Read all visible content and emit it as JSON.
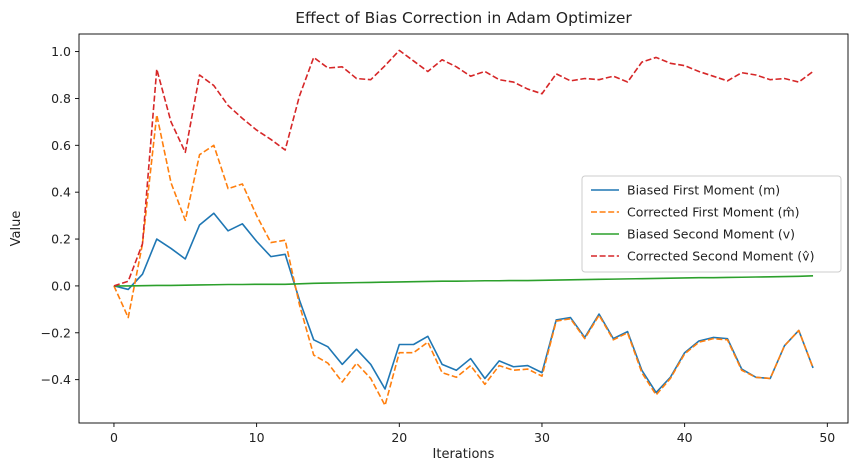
{
  "chart_data": {
    "type": "line",
    "title": "Effect of Bias Correction in Adam Optimizer",
    "xlabel": "Iterations",
    "ylabel": "Value",
    "xlim": [
      -2.45,
      51.45
    ],
    "ylim": [
      -0.585,
      1.075
    ],
    "x_ticks": [
      0,
      10,
      20,
      30,
      40,
      50
    ],
    "y_ticks": [
      -0.4,
      -0.2,
      0.0,
      0.2,
      0.4,
      0.6,
      0.8,
      1.0
    ],
    "x_tick_labels": [
      "0",
      "10",
      "20",
      "30",
      "40",
      "50"
    ],
    "y_tick_labels": [
      "−0.4",
      "−0.2",
      "0.0",
      "0.2",
      "0.4",
      "0.6",
      "0.8",
      "1.0"
    ],
    "grid": false,
    "legend_position": "center-right",
    "x": [
      0,
      1,
      2,
      3,
      4,
      5,
      6,
      7,
      8,
      9,
      10,
      11,
      12,
      13,
      14,
      15,
      16,
      17,
      18,
      19,
      20,
      21,
      22,
      23,
      24,
      25,
      26,
      27,
      28,
      29,
      30,
      31,
      32,
      33,
      34,
      35,
      36,
      37,
      38,
      39,
      40,
      41,
      42,
      43,
      44,
      45,
      46,
      47,
      48,
      49
    ],
    "series": [
      {
        "name": "Biased First Moment (m)",
        "color": "#1f77b4",
        "dash": "solid",
        "values": [
          0.0,
          -0.015,
          0.05,
          0.2,
          0.16,
          0.115,
          0.26,
          0.31,
          0.235,
          0.265,
          0.19,
          0.125,
          0.135,
          -0.06,
          -0.23,
          -0.26,
          -0.335,
          -0.27,
          -0.335,
          -0.44,
          -0.25,
          -0.25,
          -0.215,
          -0.335,
          -0.36,
          -0.31,
          -0.395,
          -0.32,
          -0.345,
          -0.34,
          -0.37,
          -0.145,
          -0.135,
          -0.22,
          -0.12,
          -0.225,
          -0.195,
          -0.36,
          -0.455,
          -0.39,
          -0.285,
          -0.235,
          -0.22,
          -0.225,
          -0.355,
          -0.39,
          -0.395,
          -0.255,
          -0.19,
          -0.35
        ]
      },
      {
        "name": "Corrected First Moment (m̂)",
        "color": "#ff7f0e",
        "dash": "dashed",
        "values": [
          0.0,
          -0.135,
          0.18,
          0.73,
          0.44,
          0.28,
          0.56,
          0.6,
          0.415,
          0.435,
          0.3,
          0.185,
          0.195,
          -0.08,
          -0.295,
          -0.33,
          -0.41,
          -0.33,
          -0.395,
          -0.51,
          -0.285,
          -0.285,
          -0.24,
          -0.37,
          -0.39,
          -0.34,
          -0.42,
          -0.34,
          -0.36,
          -0.355,
          -0.385,
          -0.15,
          -0.14,
          -0.225,
          -0.125,
          -0.23,
          -0.2,
          -0.37,
          -0.465,
          -0.395,
          -0.29,
          -0.24,
          -0.225,
          -0.23,
          -0.36,
          -0.39,
          -0.395,
          -0.255,
          -0.19,
          -0.35
        ]
      },
      {
        "name": "Biased Second Moment (v)",
        "color": "#2ca02c",
        "dash": "solid",
        "values": [
          0.0,
          0.0,
          0.001,
          0.002,
          0.002,
          0.003,
          0.004,
          0.005,
          0.006,
          0.006,
          0.007,
          0.007,
          0.007,
          0.009,
          0.011,
          0.012,
          0.013,
          0.014,
          0.015,
          0.016,
          0.017,
          0.018,
          0.019,
          0.02,
          0.02,
          0.021,
          0.022,
          0.022,
          0.023,
          0.023,
          0.024,
          0.025,
          0.026,
          0.027,
          0.028,
          0.029,
          0.03,
          0.031,
          0.032,
          0.033,
          0.034,
          0.035,
          0.035,
          0.036,
          0.037,
          0.038,
          0.039,
          0.04,
          0.041,
          0.043
        ]
      },
      {
        "name": "Corrected Second Moment (v̂)",
        "color": "#d62728",
        "dash": "dashed",
        "values": [
          0.0,
          0.02,
          0.18,
          0.925,
          0.7,
          0.57,
          0.9,
          0.855,
          0.77,
          0.715,
          0.665,
          0.625,
          0.58,
          0.81,
          0.975,
          0.93,
          0.935,
          0.885,
          0.88,
          0.94,
          1.005,
          0.96,
          0.915,
          0.965,
          0.935,
          0.895,
          0.915,
          0.88,
          0.87,
          0.84,
          0.82,
          0.905,
          0.875,
          0.885,
          0.88,
          0.895,
          0.87,
          0.955,
          0.975,
          0.95,
          0.94,
          0.915,
          0.895,
          0.875,
          0.91,
          0.9,
          0.88,
          0.885,
          0.87,
          0.915
        ]
      }
    ]
  }
}
